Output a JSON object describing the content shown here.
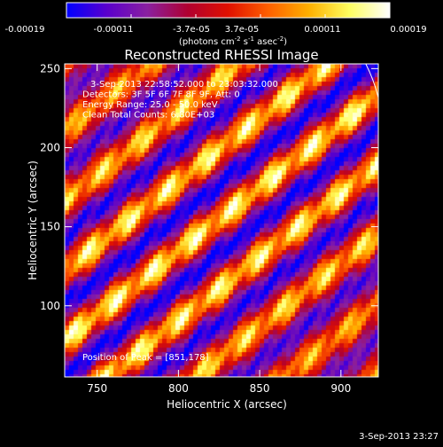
{
  "chart_data": {
    "type": "heatmap",
    "title": "Reconstructed RHESSI Image",
    "xlabel": "Heliocentric X (arcsec)",
    "ylabel": "Heliocentric Y (arcsec)",
    "xlim": [
      730,
      923
    ],
    "ylim": [
      55,
      253
    ],
    "x_ticks": [
      750,
      800,
      850,
      900
    ],
    "y_ticks": [
      100,
      150,
      200,
      250
    ],
    "colorbar": {
      "ticks": [
        "-0.00019",
        "-0.00011",
        "-3.7e-05",
        "3.7e-05",
        "0.00011",
        "0.00019"
      ],
      "unit_parts": [
        "(photons cm",
        "-2",
        " s",
        "-1",
        " asec",
        "-2",
        ")"
      ],
      "colormap": "red-temperature",
      "colors": [
        "#0000ff",
        "#5a00cc",
        "#8a20a0",
        "#b00030",
        "#e01000",
        "#ff6000",
        "#ffb000",
        "#ffff60",
        "#ffffff"
      ]
    },
    "annotations": [
      "3-Sep-2013 22:58:52.000 to 23:03:32.000",
      "Detectors: 3F 5F 6F 7F 8F 9F, Att: 0",
      "Energy Range: 25.0 - 50.0 keV",
      "Clean    Total Counts: 6.80E+03"
    ],
    "peak_label": "Position of Peak = [851,178]",
    "peak": [
      851,
      178
    ],
    "stripe_angle_deg": 38,
    "grid": false,
    "legend": "none"
  },
  "footer": {
    "timestamp": "3-Sep-2013 23:27"
  }
}
